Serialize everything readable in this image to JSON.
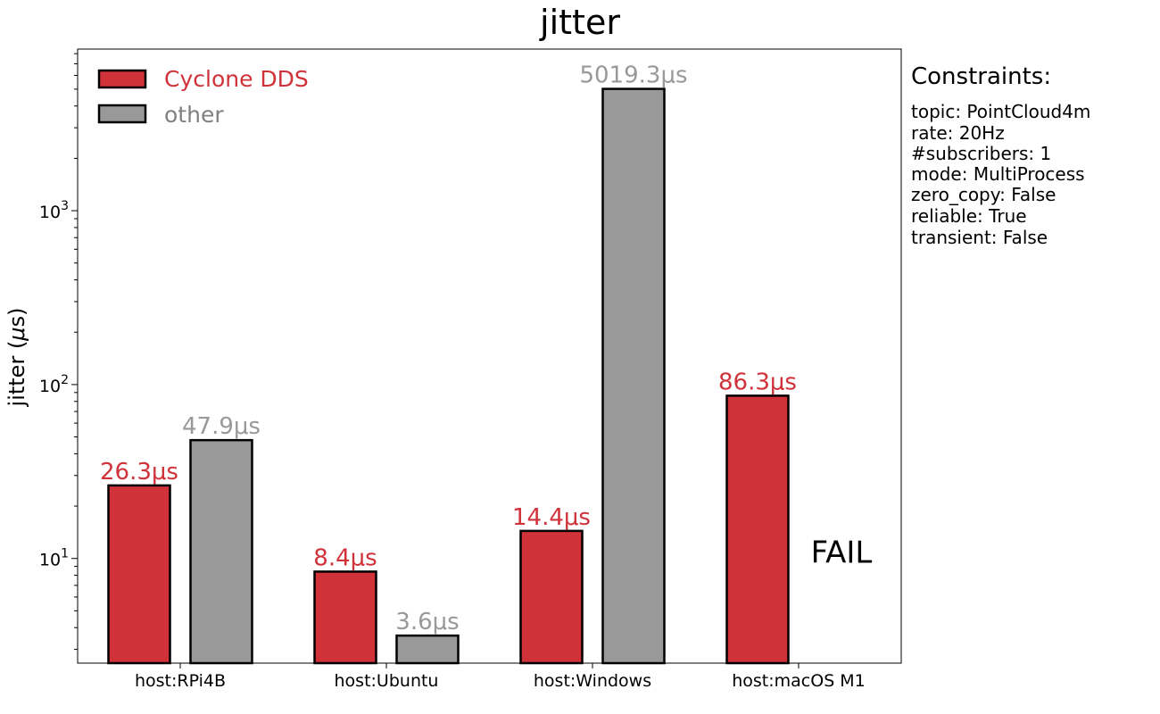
{
  "chart_data": {
    "type": "bar",
    "title": "jitter",
    "ylabel_prefix": "jitter (",
    "ylabel_mu": "μ",
    "ylabel_suffix": "s)",
    "yscale": "log",
    "ylim": [
      2.5,
      8500
    ],
    "categories": [
      "host:RPi4B",
      "host:Ubuntu",
      "host:Windows",
      "host:macOS M1"
    ],
    "series": [
      {
        "name": "Cyclone DDS",
        "color": "#d0323a",
        "values": [
          26.3,
          8.4,
          14.4,
          86.3
        ],
        "labels": [
          "26.3μs",
          "8.4μs",
          "14.4μs",
          "86.3μs"
        ]
      },
      {
        "name": "other",
        "color": "#999999",
        "label_color": "#999999",
        "legend_color": "#808080",
        "values": [
          47.9,
          3.6,
          5019.3,
          null
        ],
        "labels": [
          "47.9μs",
          "3.6μs",
          "5019.3μs",
          "FAIL"
        ]
      }
    ],
    "y_ticks": [
      {
        "value": 10,
        "base": "10",
        "exp": "1"
      },
      {
        "value": 100,
        "base": "10",
        "exp": "2"
      },
      {
        "value": 1000,
        "base": "10",
        "exp": "3"
      }
    ],
    "legend_position": "top-left",
    "grid": false
  },
  "constraints": {
    "title": "Constraints:",
    "lines": [
      "topic: PointCloud4m",
      "rate: 20Hz",
      "#subscribers: 1",
      "mode: MultiProcess",
      "zero_copy: False",
      "reliable: True",
      "transient: False"
    ]
  }
}
